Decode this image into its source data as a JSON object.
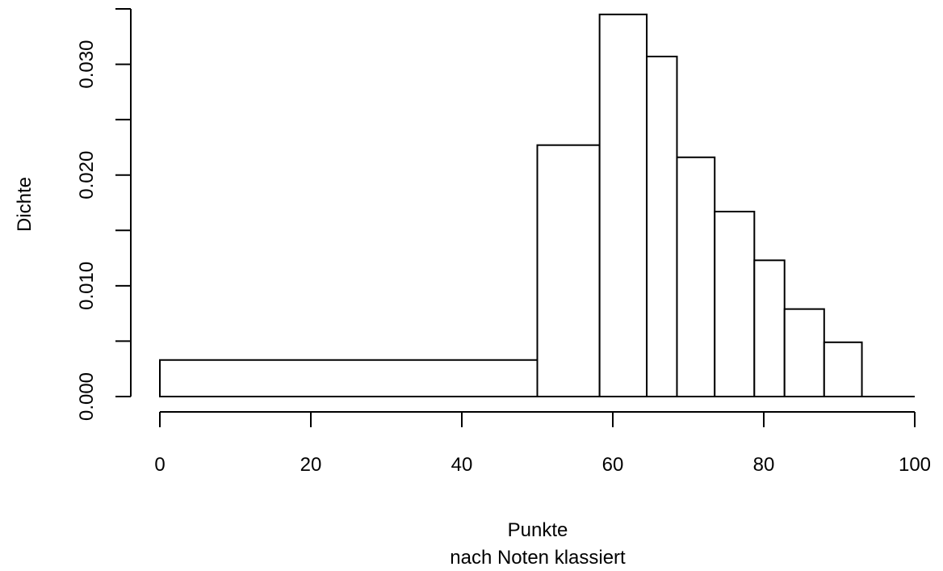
{
  "chart_data": {
    "type": "histogram",
    "xlabel": [
      "Punkte",
      "nach Noten klassiert"
    ],
    "ylabel": "Dichte",
    "xlim": [
      0,
      100
    ],
    "ylim": [
      0,
      0.035
    ],
    "x_ticks": [
      0,
      20,
      40,
      60,
      80,
      100
    ],
    "x_tick_labels": [
      "0",
      "20",
      "40",
      "60",
      "80",
      "100"
    ],
    "y_ticks": [
      0,
      0.005,
      0.01,
      0.015,
      0.02,
      0.025,
      0.03,
      0.035
    ],
    "y_tick_labels": [
      "0.000",
      "",
      "0.010",
      "",
      "0.020",
      "",
      "0.030",
      ""
    ],
    "bins": [
      {
        "from": 0,
        "to": 50,
        "density": 0.0033
      },
      {
        "from": 50,
        "to": 58.25,
        "density": 0.0227
      },
      {
        "from": 58.25,
        "to": 64.5,
        "density": 0.0345
      },
      {
        "from": 64.5,
        "to": 68.5,
        "density": 0.0307
      },
      {
        "from": 68.5,
        "to": 73.5,
        "density": 0.0216
      },
      {
        "from": 73.5,
        "to": 78.75,
        "density": 0.0167
      },
      {
        "from": 78.75,
        "to": 82.75,
        "density": 0.0123
      },
      {
        "from": 82.75,
        "to": 88,
        "density": 0.0079
      },
      {
        "from": 88,
        "to": 93,
        "density": 0.0049
      },
      {
        "from": 93,
        "to": 100,
        "density": 0
      }
    ],
    "grid": false,
    "legend": "none"
  }
}
